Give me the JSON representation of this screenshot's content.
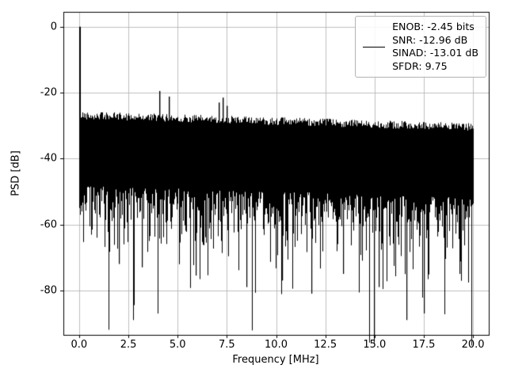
{
  "figure": {
    "background": "#ffffff"
  },
  "chart_data": {
    "type": "line",
    "title": "",
    "xlabel": "Frequency [MHz]",
    "ylabel": "PSD [dB]",
    "xlim": [
      -0.8,
      20.8
    ],
    "ylim": [
      -93.5,
      4.5
    ],
    "xticks": [
      0,
      2.5,
      5,
      7.5,
      10,
      12.5,
      15,
      17.5,
      20
    ],
    "xtick_labels": [
      "0.0",
      "2.5",
      "5.0",
      "7.5",
      "10.0",
      "12.5",
      "15.0",
      "17.5",
      "20.0"
    ],
    "yticks": [
      0,
      -20,
      -40,
      -60,
      -80
    ],
    "ytick_labels": [
      "0",
      "-20",
      "-40",
      "-60",
      "-80"
    ],
    "grid": true,
    "grid_color": "#b0b0b0",
    "spine_color": "#000000",
    "line_color": "#000000",
    "legend_position": "upper right",
    "legend": [
      "ENOB: -2.45 bits",
      "SNR: -12.96 dB",
      "SINAD: -13.01 dB",
      "SFDR: 9.75"
    ],
    "metrics": {
      "ENOB_bits": -2.45,
      "SNR_dB": -12.96,
      "SINAD_dB": -13.01,
      "SFDR": 9.75
    },
    "dc_spike": {
      "x": 0.0,
      "y_top": 0,
      "y_bottom": -55
    },
    "noise": {
      "seed": 42,
      "freq_range": [
        0,
        20
      ],
      "env_top_dB": -27.2,
      "env_slope_dB_per_MHz": -0.18,
      "top_jitter_dB": 2.4,
      "min_depth_dB": 21,
      "depth_scale_dB": 8,
      "max_depth_dB": 66
    },
    "peaks": [
      {
        "x": 4.05,
        "y": -19.5
      },
      {
        "x": 4.55,
        "y": -21.2
      },
      {
        "x": 7.1,
        "y": -23.0
      },
      {
        "x": 7.3,
        "y": -21.5
      },
      {
        "x": 7.5,
        "y": -24.0
      }
    ],
    "nulls": [
      {
        "x": 2.0,
        "y": -72.0
      },
      {
        "x": 3.2,
        "y": -73.0
      },
      {
        "x": 5.9,
        "y": -75.5
      },
      {
        "x": 8.5,
        "y": -79.0
      },
      {
        "x": 10.3,
        "y": -77.0
      },
      {
        "x": 11.8,
        "y": -81.0
      },
      {
        "x": 13.4,
        "y": -75.0
      },
      {
        "x": 15.2,
        "y": -79.0
      },
      {
        "x": 16.6,
        "y": -89.0
      },
      {
        "x": 17.5,
        "y": -87.0
      },
      {
        "x": 19.3,
        "y": -75.0
      }
    ]
  }
}
